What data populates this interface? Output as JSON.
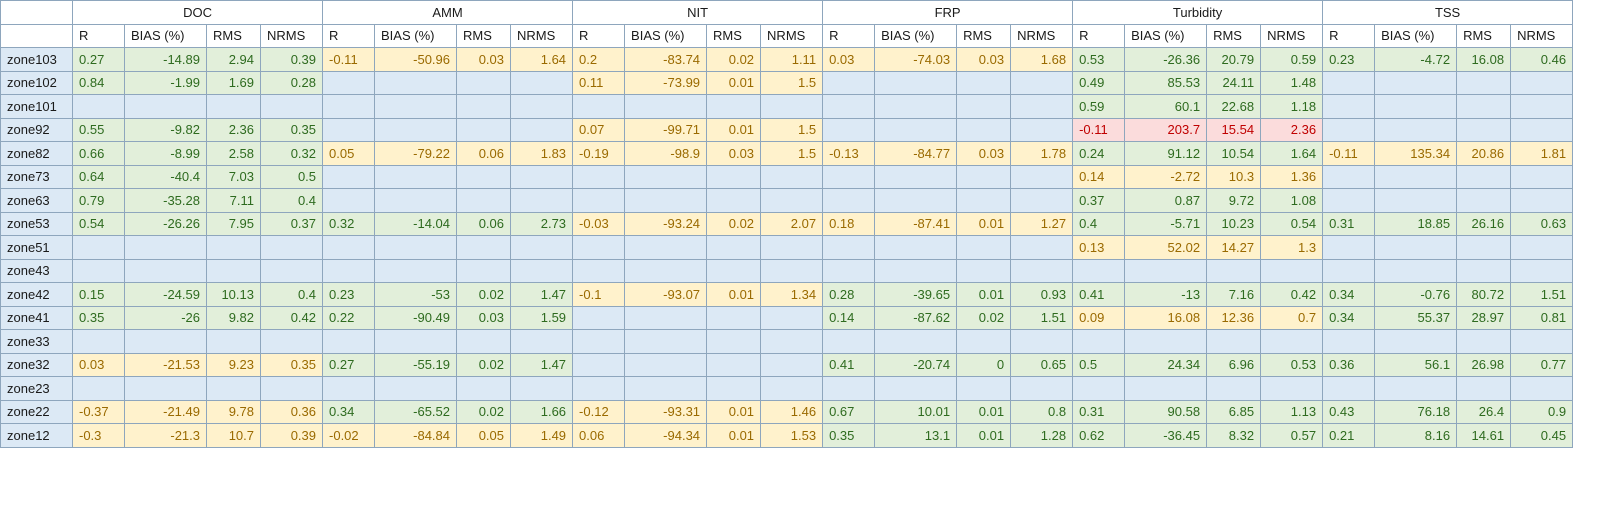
{
  "table": {
    "groups": [
      "DOC",
      "AMM",
      "NIT",
      "FRP",
      "Turbidity",
      "TSS"
    ],
    "metrics": [
      "R",
      "BIAS (%)",
      "RMS",
      "NRMS"
    ],
    "colors": {
      "empty": "#dce9f5",
      "good": "#e2efda",
      "warn": "#fff2cc",
      "bad": "#fbdcdc",
      "good_text": "#2e6b1f",
      "warn_text": "#9a6a00",
      "bad_text": "#c00000"
    },
    "rows": [
      {
        "zone": "zone103",
        "cells": [
          {
            "s": "good",
            "v": [
              "0.27",
              "-14.89",
              "2.94",
              "0.39"
            ]
          },
          {
            "s": "warn",
            "v": [
              "-0.11",
              "-50.96",
              "0.03",
              "1.64"
            ]
          },
          {
            "s": "warn",
            "v": [
              "0.2",
              "-83.74",
              "0.02",
              "1.11"
            ]
          },
          {
            "s": "warn",
            "v": [
              "0.03",
              "-74.03",
              "0.03",
              "1.68"
            ]
          },
          {
            "s": "good",
            "v": [
              "0.53",
              "-26.36",
              "20.79",
              "0.59"
            ]
          },
          {
            "s": "good",
            "v": [
              "0.23",
              "-4.72",
              "16.08",
              "0.46"
            ]
          }
        ]
      },
      {
        "zone": "zone102",
        "cells": [
          {
            "s": "good",
            "v": [
              "0.84",
              "-1.99",
              "1.69",
              "0.28"
            ]
          },
          {
            "s": "empty",
            "v": [
              "",
              "",
              "",
              ""
            ]
          },
          {
            "s": "warn",
            "v": [
              "0.11",
              "-73.99",
              "0.01",
              "1.5"
            ]
          },
          {
            "s": "empty",
            "v": [
              "",
              "",
              "",
              ""
            ]
          },
          {
            "s": "good",
            "v": [
              "0.49",
              "85.53",
              "24.11",
              "1.48"
            ]
          },
          {
            "s": "empty",
            "v": [
              "",
              "",
              "",
              ""
            ]
          }
        ]
      },
      {
        "zone": "zone101",
        "cells": [
          {
            "s": "empty",
            "v": [
              "",
              "",
              "",
              ""
            ]
          },
          {
            "s": "empty",
            "v": [
              "",
              "",
              "",
              ""
            ]
          },
          {
            "s": "empty",
            "v": [
              "",
              "",
              "",
              ""
            ]
          },
          {
            "s": "empty",
            "v": [
              "",
              "",
              "",
              ""
            ]
          },
          {
            "s": "good",
            "v": [
              "0.59",
              "60.1",
              "22.68",
              "1.18"
            ]
          },
          {
            "s": "empty",
            "v": [
              "",
              "",
              "",
              ""
            ]
          }
        ]
      },
      {
        "zone": "zone92",
        "cells": [
          {
            "s": "good",
            "v": [
              "0.55",
              "-9.82",
              "2.36",
              "0.35"
            ]
          },
          {
            "s": "empty",
            "v": [
              "",
              "",
              "",
              ""
            ]
          },
          {
            "s": "warn",
            "v": [
              "0.07",
              "-99.71",
              "0.01",
              "1.5"
            ]
          },
          {
            "s": "empty",
            "v": [
              "",
              "",
              "",
              ""
            ]
          },
          {
            "s": "bad",
            "v": [
              "-0.11",
              "203.7",
              "15.54",
              "2.36"
            ]
          },
          {
            "s": "empty",
            "v": [
              "",
              "",
              "",
              ""
            ]
          }
        ]
      },
      {
        "zone": "zone82",
        "cells": [
          {
            "s": "good",
            "v": [
              "0.66",
              "-8.99",
              "2.58",
              "0.32"
            ]
          },
          {
            "s": "warn",
            "v": [
              "0.05",
              "-79.22",
              "0.06",
              "1.83"
            ]
          },
          {
            "s": "warn",
            "v": [
              "-0.19",
              "-98.9",
              "0.03",
              "1.5"
            ]
          },
          {
            "s": "warn",
            "v": [
              "-0.13",
              "-84.77",
              "0.03",
              "1.78"
            ]
          },
          {
            "s": "good",
            "v": [
              "0.24",
              "91.12",
              "10.54",
              "1.64"
            ]
          },
          {
            "s": "warn",
            "v": [
              "-0.11",
              "135.34",
              "20.86",
              "1.81"
            ]
          }
        ]
      },
      {
        "zone": "zone73",
        "cells": [
          {
            "s": "good",
            "v": [
              "0.64",
              "-40.4",
              "7.03",
              "0.5"
            ]
          },
          {
            "s": "empty",
            "v": [
              "",
              "",
              "",
              ""
            ]
          },
          {
            "s": "empty",
            "v": [
              "",
              "",
              "",
              ""
            ]
          },
          {
            "s": "empty",
            "v": [
              "",
              "",
              "",
              ""
            ]
          },
          {
            "s": "warn",
            "v": [
              "0.14",
              "-2.72",
              "10.3",
              "1.36"
            ]
          },
          {
            "s": "empty",
            "v": [
              "",
              "",
              "",
              ""
            ]
          }
        ]
      },
      {
        "zone": "zone63",
        "cells": [
          {
            "s": "good",
            "v": [
              "0.79",
              "-35.28",
              "7.11",
              "0.4"
            ]
          },
          {
            "s": "empty",
            "v": [
              "",
              "",
              "",
              ""
            ]
          },
          {
            "s": "empty",
            "v": [
              "",
              "",
              "",
              ""
            ]
          },
          {
            "s": "empty",
            "v": [
              "",
              "",
              "",
              ""
            ]
          },
          {
            "s": "good",
            "v": [
              "0.37",
              "0.87",
              "9.72",
              "1.08"
            ]
          },
          {
            "s": "empty",
            "v": [
              "",
              "",
              "",
              ""
            ]
          }
        ]
      },
      {
        "zone": "zone53",
        "cells": [
          {
            "s": "good",
            "v": [
              "0.54",
              "-26.26",
              "7.95",
              "0.37"
            ]
          },
          {
            "s": "good",
            "v": [
              "0.32",
              "-14.04",
              "0.06",
              "2.73"
            ]
          },
          {
            "s": "warn",
            "v": [
              "-0.03",
              "-93.24",
              "0.02",
              "2.07"
            ]
          },
          {
            "s": "warn",
            "v": [
              "0.18",
              "-87.41",
              "0.01",
              "1.27"
            ]
          },
          {
            "s": "good",
            "v": [
              "0.4",
              "-5.71",
              "10.23",
              "0.54"
            ]
          },
          {
            "s": "good",
            "v": [
              "0.31",
              "18.85",
              "26.16",
              "0.63"
            ]
          }
        ]
      },
      {
        "zone": "zone51",
        "cells": [
          {
            "s": "empty",
            "v": [
              "",
              "",
              "",
              ""
            ]
          },
          {
            "s": "empty",
            "v": [
              "",
              "",
              "",
              ""
            ]
          },
          {
            "s": "empty",
            "v": [
              "",
              "",
              "",
              ""
            ]
          },
          {
            "s": "empty",
            "v": [
              "",
              "",
              "",
              ""
            ]
          },
          {
            "s": "warn",
            "v": [
              "0.13",
              "52.02",
              "14.27",
              "1.3"
            ]
          },
          {
            "s": "empty",
            "v": [
              "",
              "",
              "",
              ""
            ]
          }
        ]
      },
      {
        "zone": "zone43",
        "cells": [
          {
            "s": "empty",
            "v": [
              "",
              "",
              "",
              ""
            ]
          },
          {
            "s": "empty",
            "v": [
              "",
              "",
              "",
              ""
            ]
          },
          {
            "s": "empty",
            "v": [
              "",
              "",
              "",
              ""
            ]
          },
          {
            "s": "empty",
            "v": [
              "",
              "",
              "",
              ""
            ]
          },
          {
            "s": "empty",
            "v": [
              "",
              "",
              "",
              ""
            ]
          },
          {
            "s": "empty",
            "v": [
              "",
              "",
              "",
              ""
            ]
          }
        ]
      },
      {
        "zone": "zone42",
        "cells": [
          {
            "s": "good",
            "v": [
              "0.15",
              "-24.59",
              "10.13",
              "0.4"
            ]
          },
          {
            "s": "good",
            "v": [
              "0.23",
              "-53",
              "0.02",
              "1.47"
            ]
          },
          {
            "s": "warn",
            "v": [
              "-0.1",
              "-93.07",
              "0.01",
              "1.34"
            ]
          },
          {
            "s": "good",
            "v": [
              "0.28",
              "-39.65",
              "0.01",
              "0.93"
            ]
          },
          {
            "s": "good",
            "v": [
              "0.41",
              "-13",
              "7.16",
              "0.42"
            ]
          },
          {
            "s": "good",
            "v": [
              "0.34",
              "-0.76",
              "80.72",
              "1.51"
            ]
          }
        ]
      },
      {
        "zone": "zone41",
        "cells": [
          {
            "s": "good",
            "v": [
              "0.35",
              "-26",
              "9.82",
              "0.42"
            ]
          },
          {
            "s": "good",
            "v": [
              "0.22",
              "-90.49",
              "0.03",
              "1.59"
            ]
          },
          {
            "s": "empty",
            "v": [
              "",
              "",
              "",
              ""
            ]
          },
          {
            "s": "good",
            "v": [
              "0.14",
              "-87.62",
              "0.02",
              "1.51"
            ]
          },
          {
            "s": "warn",
            "v": [
              "0.09",
              "16.08",
              "12.36",
              "0.7"
            ]
          },
          {
            "s": "good",
            "v": [
              "0.34",
              "55.37",
              "28.97",
              "0.81"
            ]
          }
        ]
      },
      {
        "zone": "zone33",
        "cells": [
          {
            "s": "empty",
            "v": [
              "",
              "",
              "",
              ""
            ]
          },
          {
            "s": "empty",
            "v": [
              "",
              "",
              "",
              ""
            ]
          },
          {
            "s": "empty",
            "v": [
              "",
              "",
              "",
              ""
            ]
          },
          {
            "s": "empty",
            "v": [
              "",
              "",
              "",
              ""
            ]
          },
          {
            "s": "empty",
            "v": [
              "",
              "",
              "",
              ""
            ]
          },
          {
            "s": "empty",
            "v": [
              "",
              "",
              "",
              ""
            ]
          }
        ]
      },
      {
        "zone": "zone32",
        "cells": [
          {
            "s": "warn",
            "v": [
              "0.03",
              "-21.53",
              "9.23",
              "0.35"
            ]
          },
          {
            "s": "good",
            "v": [
              "0.27",
              "-55.19",
              "0.02",
              "1.47"
            ]
          },
          {
            "s": "empty",
            "v": [
              "",
              "",
              "",
              ""
            ]
          },
          {
            "s": "good",
            "v": [
              "0.41",
              "-20.74",
              "0",
              "0.65"
            ]
          },
          {
            "s": "good",
            "v": [
              "0.5",
              "24.34",
              "6.96",
              "0.53"
            ]
          },
          {
            "s": "good",
            "v": [
              "0.36",
              "56.1",
              "26.98",
              "0.77"
            ]
          }
        ]
      },
      {
        "zone": "zone23",
        "cells": [
          {
            "s": "empty",
            "v": [
              "",
              "",
              "",
              ""
            ]
          },
          {
            "s": "empty",
            "v": [
              "",
              "",
              "",
              ""
            ]
          },
          {
            "s": "empty",
            "v": [
              "",
              "",
              "",
              ""
            ]
          },
          {
            "s": "empty",
            "v": [
              "",
              "",
              "",
              ""
            ]
          },
          {
            "s": "empty",
            "v": [
              "",
              "",
              "",
              ""
            ]
          },
          {
            "s": "empty",
            "v": [
              "",
              "",
              "",
              ""
            ]
          }
        ]
      },
      {
        "zone": "zone22",
        "cells": [
          {
            "s": "warn",
            "v": [
              "-0.37",
              "-21.49",
              "9.78",
              "0.36"
            ]
          },
          {
            "s": "good",
            "v": [
              "0.34",
              "-65.52",
              "0.02",
              "1.66"
            ]
          },
          {
            "s": "warn",
            "v": [
              "-0.12",
              "-93.31",
              "0.01",
              "1.46"
            ]
          },
          {
            "s": "good",
            "v": [
              "0.67",
              "10.01",
              "0.01",
              "0.8"
            ]
          },
          {
            "s": "good",
            "v": [
              "0.31",
              "90.58",
              "6.85",
              "1.13"
            ]
          },
          {
            "s": "good",
            "v": [
              "0.43",
              "76.18",
              "26.4",
              "0.9"
            ]
          }
        ]
      },
      {
        "zone": "zone12",
        "cells": [
          {
            "s": "warn",
            "v": [
              "-0.3",
              "-21.3",
              "10.7",
              "0.39"
            ]
          },
          {
            "s": "warn",
            "v": [
              "-0.02",
              "-84.84",
              "0.05",
              "1.49"
            ]
          },
          {
            "s": "warn",
            "v": [
              "0.06",
              "-94.34",
              "0.01",
              "1.53"
            ]
          },
          {
            "s": "good",
            "v": [
              "0.35",
              "13.1",
              "0.01",
              "1.28"
            ]
          },
          {
            "s": "good",
            "v": [
              "0.62",
              "-36.45",
              "8.32",
              "0.57"
            ]
          },
          {
            "s": "good",
            "v": [
              "0.21",
              "8.16",
              "14.61",
              "0.45"
            ]
          }
        ]
      }
    ]
  }
}
